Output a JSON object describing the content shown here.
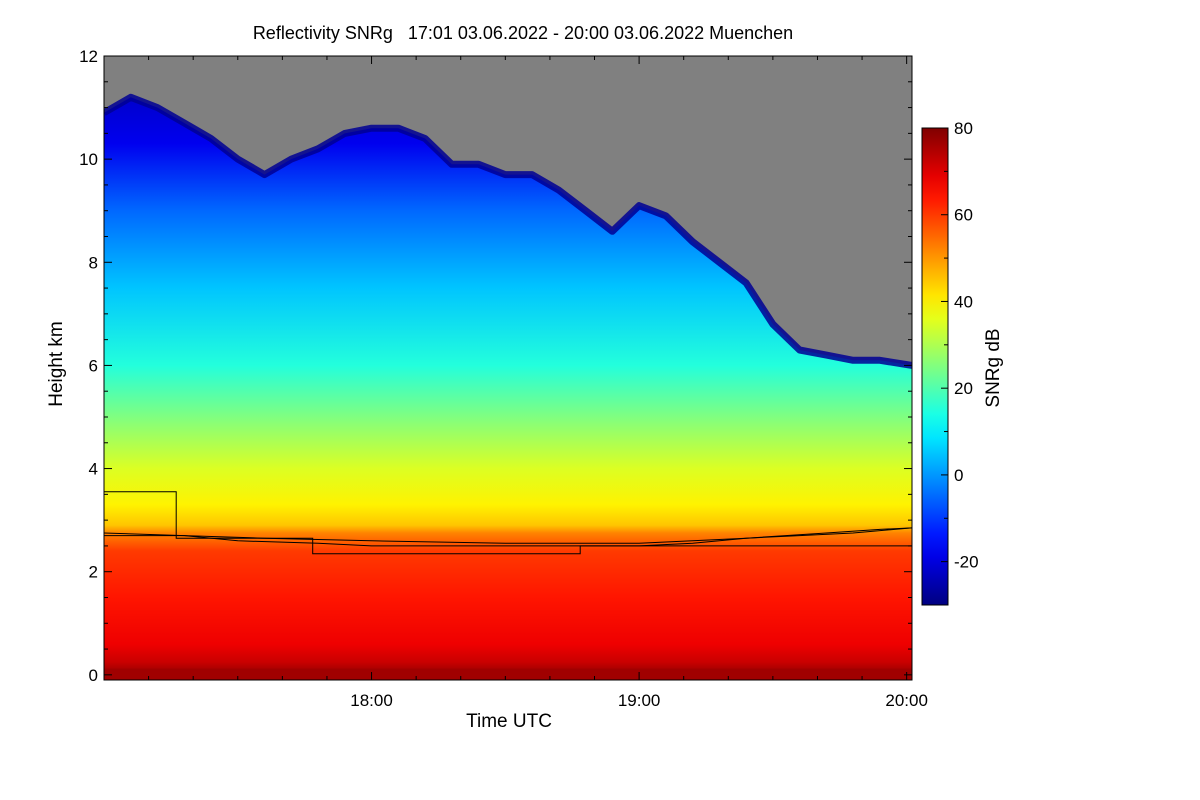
{
  "chart_data": {
    "type": "heatmap",
    "title": "Reflectivity SNRg   17:01 03.06.2022 - 20:00 03.06.2022 Muenchen",
    "xlabel": "Time UTC",
    "ylabel": "Height km",
    "colorbar_label": "SNRg dB",
    "x_unit": "hours UTC",
    "xlim": [
      17.0,
      20.02
    ],
    "ylim": [
      -0.1,
      12.0
    ],
    "x_ticks": [
      {
        "value": 18.0,
        "label": "18:00"
      },
      {
        "value": 19.0,
        "label": "19:00"
      },
      {
        "value": 20.0,
        "label": "20:00"
      }
    ],
    "y_ticks": [
      {
        "value": 0,
        "label": "0"
      },
      {
        "value": 2,
        "label": "2"
      },
      {
        "value": 4,
        "label": "4"
      },
      {
        "value": 6,
        "label": "6"
      },
      {
        "value": 8,
        "label": "8"
      },
      {
        "value": 10,
        "label": "10"
      },
      {
        "value": 12,
        "label": "12"
      }
    ],
    "colorbar_range": [
      -30,
      80
    ],
    "colorbar_ticks": [
      {
        "value": -20,
        "label": "-20"
      },
      {
        "value": 0,
        "label": "0"
      },
      {
        "value": 20,
        "label": "20"
      },
      {
        "value": 40,
        "label": "40"
      },
      {
        "value": 60,
        "label": "60"
      },
      {
        "value": 80,
        "label": "80"
      }
    ],
    "no_signal_color": "#808080",
    "echo_top": [
      [
        17.0,
        10.9
      ],
      [
        17.1,
        11.2
      ],
      [
        17.2,
        11.0
      ],
      [
        17.3,
        10.7
      ],
      [
        17.4,
        10.4
      ],
      [
        17.5,
        10.0
      ],
      [
        17.6,
        9.7
      ],
      [
        17.7,
        10.0
      ],
      [
        17.8,
        10.2
      ],
      [
        17.9,
        10.5
      ],
      [
        18.0,
        10.6
      ],
      [
        18.1,
        10.6
      ],
      [
        18.2,
        10.4
      ],
      [
        18.3,
        9.9
      ],
      [
        18.4,
        9.9
      ],
      [
        18.5,
        9.7
      ],
      [
        18.6,
        9.7
      ],
      [
        18.7,
        9.4
      ],
      [
        18.8,
        9.0
      ],
      [
        18.9,
        8.6
      ],
      [
        19.0,
        9.1
      ],
      [
        19.1,
        8.9
      ],
      [
        19.2,
        8.4
      ],
      [
        19.3,
        8.0
      ],
      [
        19.4,
        7.6
      ],
      [
        19.5,
        6.8
      ],
      [
        19.6,
        6.3
      ],
      [
        19.7,
        6.2
      ],
      [
        19.8,
        6.1
      ],
      [
        19.9,
        6.1
      ],
      [
        20.02,
        6.0
      ]
    ],
    "melting_layer": [
      [
        17.0,
        2.75
      ],
      [
        17.3,
        2.7
      ],
      [
        17.5,
        2.6
      ],
      [
        17.8,
        2.55
      ],
      [
        18.0,
        2.5
      ],
      [
        18.3,
        2.5
      ],
      [
        18.6,
        2.5
      ],
      [
        18.8,
        2.5
      ],
      [
        19.0,
        2.5
      ],
      [
        19.2,
        2.55
      ],
      [
        19.4,
        2.65
      ],
      [
        19.6,
        2.7
      ],
      [
        19.8,
        2.75
      ],
      [
        20.02,
        2.85
      ]
    ],
    "threshold_line": [
      [
        17.0,
        3.55
      ],
      [
        17.27,
        3.55
      ],
      [
        17.27,
        2.65
      ],
      [
        17.78,
        2.65
      ],
      [
        17.78,
        2.35
      ],
      [
        18.78,
        2.35
      ],
      [
        18.78,
        2.5
      ],
      [
        20.02,
        2.5
      ]
    ],
    "upper_line": [
      [
        17.0,
        2.7
      ],
      [
        17.3,
        2.7
      ],
      [
        17.6,
        2.65
      ],
      [
        18.0,
        2.6
      ],
      [
        18.5,
        2.55
      ],
      [
        19.0,
        2.55
      ],
      [
        19.4,
        2.65
      ],
      [
        19.7,
        2.75
      ],
      [
        19.9,
        2.82
      ],
      [
        20.02,
        2.85
      ]
    ]
  }
}
